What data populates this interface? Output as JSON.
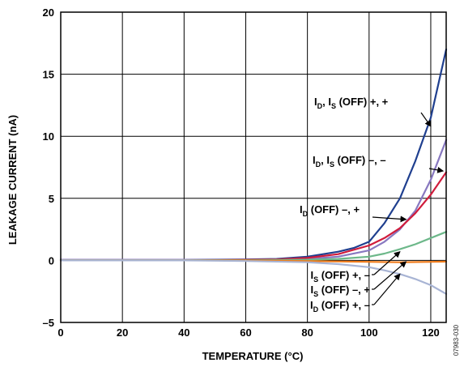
{
  "chart_data": {
    "type": "line",
    "xlabel": "TEMPERATURE (°C)",
    "ylabel": "LEAKAGE CURRENT (nA)",
    "xlim": [
      0,
      125
    ],
    "ylim": [
      -5,
      20
    ],
    "xticks": [
      0,
      20,
      40,
      60,
      80,
      100,
      120
    ],
    "yticks": [
      20,
      15,
      10,
      5,
      0,
      -5
    ],
    "grid": true,
    "figure_id": "07983-030",
    "series": [
      {
        "color": "#1f3f8f",
        "x": [
          0,
          20,
          40,
          60,
          70,
          80,
          90,
          95,
          100,
          105,
          110,
          115,
          120,
          125
        ],
        "y": [
          0.05,
          0.05,
          0.05,
          0.08,
          0.12,
          0.3,
          0.7,
          1.0,
          1.5,
          3.0,
          5.0,
          8.0,
          11.5,
          17.0
        ]
      },
      {
        "color": "#8878c0",
        "x": [
          0,
          20,
          40,
          60,
          70,
          80,
          90,
          100,
          105,
          110,
          115,
          120,
          125
        ],
        "y": [
          0.05,
          0.05,
          0.05,
          0.05,
          0.08,
          0.12,
          0.3,
          0.8,
          1.5,
          2.5,
          4.0,
          6.5,
          9.7
        ]
      },
      {
        "color": "#d01c3c",
        "x": [
          0,
          20,
          40,
          60,
          70,
          80,
          90,
          100,
          105,
          110,
          115,
          120,
          125
        ],
        "y": [
          0.0,
          0.0,
          0.0,
          0.03,
          0.08,
          0.2,
          0.5,
          1.2,
          1.8,
          2.6,
          3.8,
          5.3,
          7.1
        ]
      },
      {
        "color": "#6db88a",
        "x": [
          0,
          20,
          40,
          60,
          80,
          90,
          100,
          105,
          110,
          115,
          120,
          125
        ],
        "y": [
          0.02,
          0.02,
          0.02,
          0.02,
          0.05,
          0.12,
          0.3,
          0.55,
          0.9,
          1.3,
          1.8,
          2.3
        ]
      },
      {
        "color": "#f07c1c",
        "x": [
          0,
          20,
          40,
          60,
          80,
          100,
          110,
          120,
          125
        ],
        "y": [
          0.0,
          0.0,
          0.0,
          0.0,
          -0.05,
          -0.12,
          -0.15,
          -0.12,
          -0.1
        ]
      },
      {
        "color": "#a8b4d4",
        "x": [
          0,
          20,
          40,
          60,
          80,
          90,
          100,
          105,
          110,
          115,
          120,
          125
        ],
        "y": [
          0.0,
          0.0,
          0.0,
          -0.05,
          -0.15,
          -0.3,
          -0.55,
          -0.8,
          -1.1,
          -1.5,
          -2.0,
          -2.7
        ]
      }
    ],
    "annotations": [
      {
        "parts": [
          {
            "t": "I"
          },
          {
            "t": "D",
            "sub": true
          },
          {
            "t": ", I"
          },
          {
            "t": "S",
            "sub": true
          },
          {
            "t": " (OFF) +, +"
          }
        ],
        "arrow_to": [
          120,
          10.8
        ]
      },
      {
        "parts": [
          {
            "t": "I"
          },
          {
            "t": "D",
            "sub": true
          },
          {
            "t": ", I"
          },
          {
            "t": "S",
            "sub": true
          },
          {
            "t": " (OFF) –, –"
          }
        ],
        "arrow_to": [
          124,
          7.2
        ]
      },
      {
        "parts": [
          {
            "t": "I"
          },
          {
            "t": "D",
            "sub": true
          },
          {
            "t": " (OFF) –, +"
          }
        ],
        "arrow_to": [
          112,
          3.3
        ]
      },
      {
        "parts": [
          {
            "t": "I"
          },
          {
            "t": "S",
            "sub": true
          },
          {
            "t": " (OFF) +, –"
          }
        ],
        "arrow_to": [
          110,
          0.7
        ]
      },
      {
        "parts": [
          {
            "t": "I"
          },
          {
            "t": "S",
            "sub": true
          },
          {
            "t": " (OFF) –, +"
          }
        ],
        "arrow_to": [
          112,
          -0.1
        ]
      },
      {
        "parts": [
          {
            "t": "I"
          },
          {
            "t": "D",
            "sub": true
          },
          {
            "t": " (OFF) +, –"
          }
        ],
        "arrow_to": [
          110,
          -1.1
        ]
      }
    ]
  }
}
